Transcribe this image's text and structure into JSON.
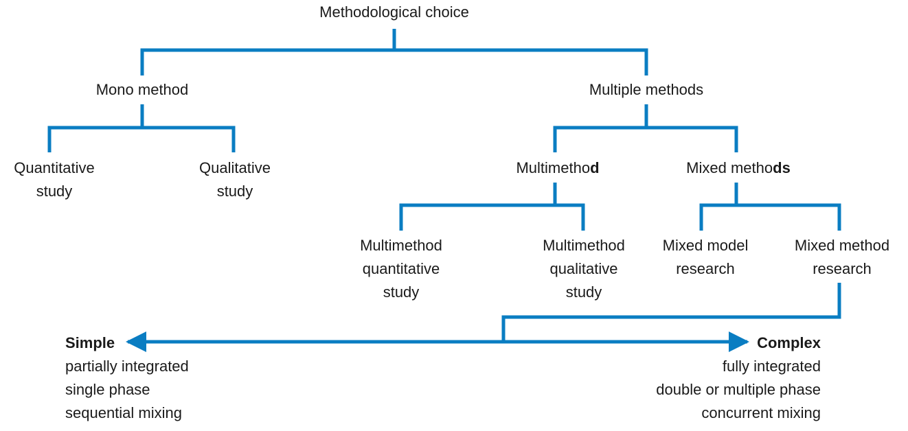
{
  "colors": {
    "connector": "#0a7dc2",
    "text": "#1a1a1a",
    "background": "#ffffff"
  },
  "root": "Methodological choice",
  "level1": {
    "mono": "Mono method",
    "multiple": "Multiple methods"
  },
  "mono_children": {
    "quantitative": [
      "Quantitative",
      "study"
    ],
    "qualitative": [
      "Qualitative",
      "study"
    ]
  },
  "multiple_children": {
    "multimethod": {
      "regular": "Multimetho",
      "bold": "d"
    },
    "mixed": {
      "regular": "Mixed metho",
      "bold": "ds"
    }
  },
  "multimethod_children": {
    "quantitative": [
      "Multimethod",
      "quantitative",
      "study"
    ],
    "qualitative": [
      "Multimethod",
      "qualitative",
      "study"
    ]
  },
  "mixed_children": {
    "model": [
      "Mixed model",
      "research"
    ],
    "method": [
      "Mixed method",
      "research"
    ]
  },
  "continuum": {
    "simple": {
      "title": "Simple",
      "lines": [
        "partially integrated",
        "single phase",
        "sequential mixing"
      ]
    },
    "complex": {
      "title": "Complex",
      "lines": [
        "fully integrated",
        "double or multiple phase",
        "concurrent mixing"
      ]
    }
  }
}
